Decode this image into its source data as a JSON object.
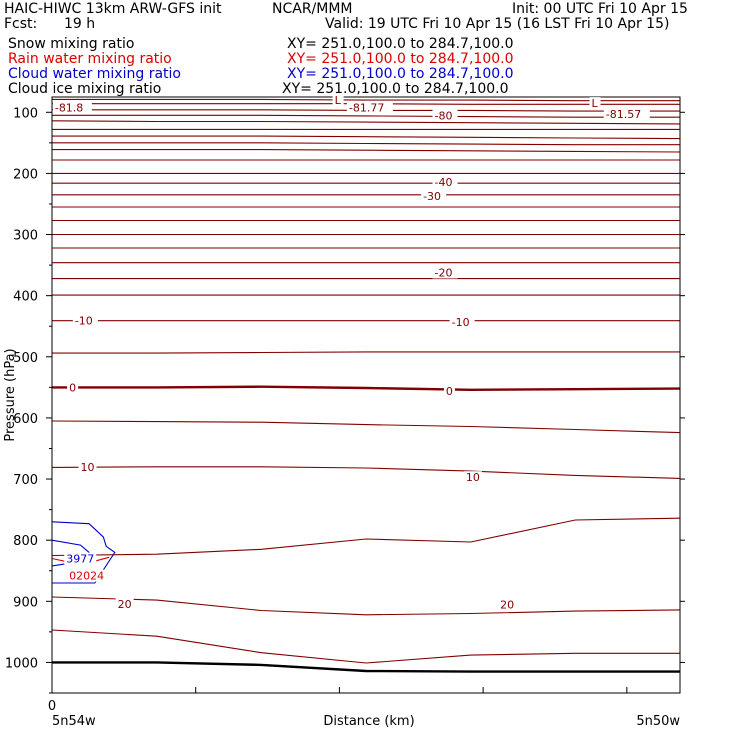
{
  "header": {
    "model": "HAIC-HIWC 13km ARW-GFS init",
    "org": "NCAR/MMM",
    "init": "Init: 00 UTC Fri 10 Apr 15",
    "fcst_label": "Fcst:",
    "fcst_value": "19 h",
    "valid": "Valid: 19 UTC Fri 10 Apr 15 (16 LST Fri 10 Apr 15)"
  },
  "fields": [
    {
      "name": "Snow mixing ratio",
      "xy": "XY= 251.0,100.0 to 284.7,100.0",
      "color": "#000000"
    },
    {
      "name": "Rain water mixing ratio",
      "xy": "XY= 251.0,100.0 to 284.7,100.0",
      "color": "#dd0000"
    },
    {
      "name": "Cloud water mixing ratio",
      "xy": "XY= 251.0,100.0 to 284.7,100.0",
      "color": "#0000cc"
    },
    {
      "name": "Cloud ice mixing ratio",
      "xy": "XY= 251.0,100.0 to 284.7,100.0",
      "color": "#000000"
    }
  ],
  "chart_data": {
    "type": "contour-cross-section",
    "ylabel": "Pressure (hPa)",
    "xlabel": "Distance (km)",
    "yticks": [
      100,
      200,
      300,
      400,
      500,
      600,
      700,
      800,
      900,
      1000
    ],
    "ylim": [
      1050,
      75
    ],
    "xlim": [
      0,
      2.2
    ],
    "x_tick_label": "0",
    "left_location": "5n54w",
    "right_location": "5n50w",
    "contour_color": "#800000",
    "contours": [
      {
        "p": [
          79,
          79,
          79,
          80,
          80,
          81,
          81
        ]
      },
      {
        "p": [
          86,
          86,
          86,
          86,
          87,
          87,
          87
        ]
      },
      {
        "p": [
          96,
          96,
          96,
          97,
          97,
          98,
          98
        ]
      },
      {
        "p": [
          105,
          105,
          105,
          106,
          107,
          108,
          108
        ]
      },
      {
        "p": [
          114,
          115,
          115,
          116,
          117,
          118,
          119
        ]
      },
      {
        "p": [
          128,
          128,
          128,
          128,
          128,
          128,
          128
        ]
      },
      {
        "p": [
          139,
          139,
          139,
          140,
          141,
          142,
          143
        ]
      },
      {
        "p": [
          150,
          150,
          150,
          151,
          152,
          153,
          153
        ]
      },
      {
        "p": [
          161,
          161,
          161,
          162,
          163,
          164,
          165
        ]
      },
      {
        "p": [
          178,
          178,
          178,
          178,
          178,
          178,
          178
        ]
      },
      {
        "p": [
          200,
          200,
          200,
          200,
          200,
          200,
          200
        ]
      },
      {
        "p": [
          216,
          216,
          216,
          216,
          216,
          216,
          216
        ]
      },
      {
        "p": [
          235,
          235,
          235,
          235,
          235,
          235,
          235
        ]
      },
      {
        "p": [
          255,
          255,
          255,
          255,
          255,
          255,
          255
        ]
      },
      {
        "p": [
          277,
          277,
          277,
          277,
          277,
          277,
          277
        ]
      },
      {
        "p": [
          300,
          300,
          300,
          300,
          300,
          300,
          300
        ]
      },
      {
        "p": [
          322,
          322,
          322,
          322,
          322,
          322,
          322
        ]
      },
      {
        "p": [
          346,
          346,
          346,
          346,
          346,
          346,
          346
        ]
      },
      {
        "p": [
          372,
          372,
          372,
          372,
          372,
          372,
          372
        ]
      },
      {
        "p": [
          399,
          399,
          399,
          399,
          399,
          399,
          399
        ]
      },
      {
        "p": [
          441,
          441,
          441,
          441,
          441,
          441,
          441
        ]
      },
      {
        "p": [
          494,
          494,
          493,
          492,
          492,
          492,
          492
        ]
      },
      {
        "p": [
          550,
          550,
          549,
          551,
          554,
          553,
          552
        ],
        "bold": true
      },
      {
        "p": [
          605,
          606,
          607,
          611,
          614,
          619,
          624
        ]
      },
      {
        "p": [
          681,
          680,
          680,
          682,
          687,
          694,
          699
        ]
      },
      {
        "p": [
          825,
          823,
          815,
          798,
          803,
          767,
          764
        ]
      },
      {
        "p": [
          893,
          898,
          915,
          922,
          920,
          916,
          914
        ]
      },
      {
        "p": [
          947,
          957,
          984,
          1001,
          988,
          985,
          985
        ]
      },
      {
        "p": [
          1000,
          1000,
          1004,
          1014,
          1015,
          1015,
          1015
        ],
        "bold": true,
        "color": "#000000"
      }
    ],
    "labels": [
      {
        "text": "L",
        "x": 0.99,
        "p": 80
      },
      {
        "text": "-81.77",
        "x": 1.04,
        "p": 92
      },
      {
        "text": "L",
        "x": 1.89,
        "p": 85
      },
      {
        "text": "-81.57",
        "x": 1.94,
        "p": 103
      },
      {
        "text": "-81.8",
        "x": 0.01,
        "p": 92
      },
      {
        "text": "-80",
        "x": 1.34,
        "p": 105
      },
      {
        "text": "-40",
        "x": 1.34,
        "p": 214
      },
      {
        "text": "-30",
        "x": 1.3,
        "p": 237
      },
      {
        "text": "-20",
        "x": 1.34,
        "p": 362
      },
      {
        "text": "-10",
        "x": 0.08,
        "p": 441
      },
      {
        "text": "-10",
        "x": 1.4,
        "p": 443
      },
      {
        "text": "0",
        "x": 0.06,
        "p": 550
      },
      {
        "text": "0",
        "x": 1.38,
        "p": 556
      },
      {
        "text": "10",
        "x": 0.1,
        "p": 680
      },
      {
        "text": "10",
        "x": 1.45,
        "p": 697
      },
      {
        "text": "20",
        "x": 0.23,
        "p": 904
      },
      {
        "text": "20",
        "x": 1.57,
        "p": 905
      },
      {
        "text": "3977",
        "x": 0.05,
        "p": 830,
        "color": "#0000cc"
      },
      {
        "text": "02024",
        "x": 0.06,
        "p": 858,
        "color": "#dd0000"
      }
    ],
    "cloud_water_outline": [
      [
        0,
        770
      ],
      [
        0.13,
        773
      ],
      [
        0.18,
        795
      ],
      [
        0.19,
        810
      ],
      [
        0.22,
        820
      ],
      [
        0.15,
        870
      ],
      [
        0,
        870
      ]
    ],
    "cloud_water_inner": [
      [
        0,
        800
      ],
      [
        0.1,
        808
      ],
      [
        0.13,
        820
      ],
      [
        0.1,
        835
      ],
      [
        0,
        842
      ]
    ],
    "rain_contour": [
      [
        0,
        830
      ],
      [
        0.05,
        835
      ],
      [
        0.12,
        838
      ],
      [
        0.2,
        828
      ]
    ]
  }
}
